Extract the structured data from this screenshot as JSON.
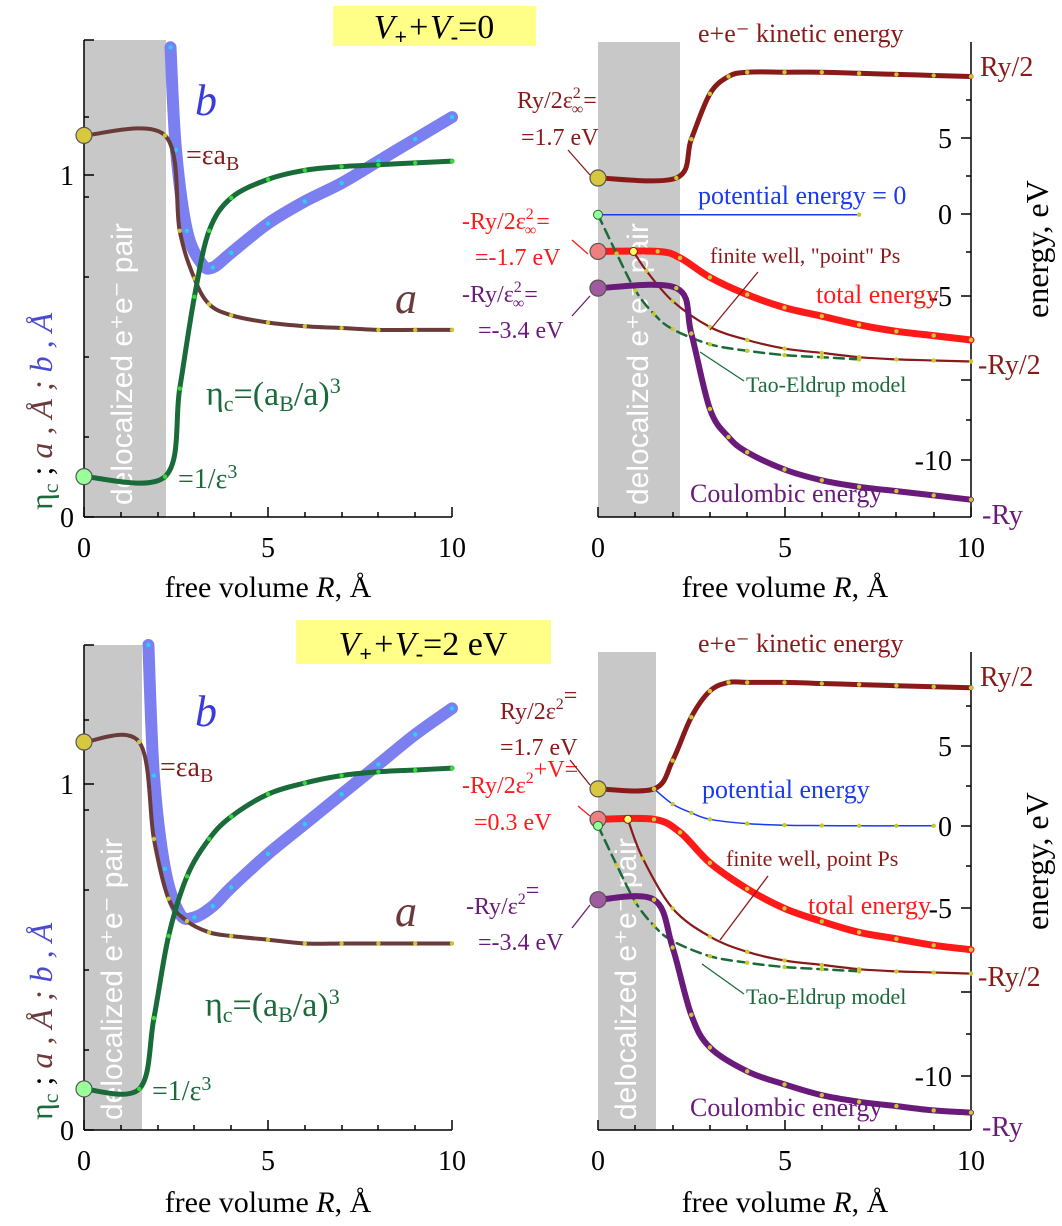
{
  "panels": [
    {
      "id": "top",
      "condition": {
        "v_text": "V",
        "plus": "+",
        "plus_v": "+V",
        "minus": "-",
        "rest": "=0"
      },
      "left": {
        "band_label": "delocalized e⁺e⁻ pair",
        "b_label": "b",
        "a_label": "a",
        "eps_label": "=εa",
        "eps_sub": "B",
        "eta_label_main": "η",
        "eta_label_sub": "c",
        "eta_formula_pre": "=(a",
        "eta_formula_sub": "B",
        "eta_formula_post": "/a)",
        "eta_formula_pow": "3",
        "inv_eps_label": "=1/ε",
        "inv_eps_pow": "3",
        "ylabel_eta": "η",
        "ylabel_eta_sub": "c",
        "ylabel_a": "a , Å ;",
        "ylabel_b": "b , Å",
        "xlabel_pre": "free volume ",
        "xlabel_var": "R",
        "xlabel_post": ", Å"
      },
      "right": {
        "band_label": "delocalized e⁺e⁻ pair",
        "kinetic_label": "e+e⁻ kinetic energy",
        "potential_label": "potential energy = 0",
        "finite_well_label": "finite well, \"point\" Ps",
        "total_label": "total energy",
        "tao_label": "Tao-Eldrup model",
        "coulomb_label": "Coulombic energy",
        "ry2_top": "Ry/2",
        "ry2_bottom": "-Ry/2",
        "ry_bottom": "-Ry",
        "note1_a": "Ry/2ε",
        "note1_sup": "2",
        "note1_sub": "∞",
        "note1_eq": "=",
        "note1_b": "=1.7 eV",
        "note2_a": "-Ry/2ε",
        "note2_sup": "2",
        "note2_sub": "∞",
        "note2_eq": "=",
        "note2_b": "=-1.7 eV",
        "note3_a": "-Ry/ε",
        "note3_sup": "2",
        "note3_sub": "∞",
        "note3_eq": "=",
        "note3_b": "=-3.4 eV",
        "ylabel": "energy, eV",
        "xlabel_pre": "free volume ",
        "xlabel_var": "R",
        "xlabel_post": ", Å"
      }
    },
    {
      "id": "bottom",
      "condition": {
        "v_text": "V",
        "plus": "+",
        "plus_v": "+V",
        "minus": "-",
        "rest": "=2 eV"
      },
      "left": {
        "band_label": "delocalized e⁺e⁻ pair",
        "b_label": "b",
        "a_label": "a",
        "eps_label": "=εa",
        "eps_sub": "B",
        "eta_label_main": "η",
        "eta_label_sub": "c",
        "eta_formula_pre": "=(a",
        "eta_formula_sub": "B",
        "eta_formula_post": "/a)",
        "eta_formula_pow": "3",
        "inv_eps_label": "=1/ε",
        "inv_eps_pow": "3",
        "ylabel_eta": "η",
        "ylabel_eta_sub": "c",
        "ylabel_a": "a , Å ;",
        "ylabel_b": "b , Å",
        "xlabel_pre": "free volume ",
        "xlabel_var": "R",
        "xlabel_post": ", Å"
      },
      "right": {
        "band_label": "delocalized e⁺e⁻ pair",
        "kinetic_label": "e+e⁻ kinetic energy",
        "potential_label": "potential energy",
        "finite_well_label": "finite well, point Ps",
        "total_label": "total energy",
        "tao_label": "Tao-Eldrup model",
        "coulomb_label": "Coulombic energy",
        "ry2_top": "Ry/2",
        "ry2_bottom": "-Ry/2",
        "ry_bottom": "-Ry",
        "note1_a": "Ry/2ε",
        "note1_sup": "2",
        "note1_sub": "",
        "note1_eq": "=",
        "note1_b": "=1.7 eV",
        "note2_a": "-Ry/2ε",
        "note2_sup": "2",
        "note2_sub": "",
        "note2_eq": "+V=",
        "note2_b": "=0.3 eV",
        "note3_a": "-Ry/ε",
        "note3_sup": "2",
        "note3_sub": "",
        "note3_eq": "=",
        "note3_b": "=-3.4 eV",
        "ylabel": "energy, eV",
        "xlabel_pre": "free volume ",
        "xlabel_var": "R",
        "xlabel_post": ", Å"
      }
    }
  ],
  "colors": {
    "band": "#c8c8c8",
    "b_curve": "#7b7ff0",
    "b_dots": "#22d4f0",
    "a_curve": "#6b3a3a",
    "eps_curve": "#8a1a1a",
    "eta_curve": "#1a6b3a",
    "eta_dots": "#33dd33",
    "ydots": "#c8c832",
    "kinetic": "#8a1a1a",
    "potential": "#1a3af0",
    "total": "#ff1a1a",
    "finite_well": "#8a1a1a",
    "tao": "#1a6b3a",
    "coulomb": "#6a1a7a",
    "highlight": "#ffff88",
    "marker_yellow": "#d8c840",
    "marker_green": "#99ff99",
    "marker_pink": "#f08080",
    "marker_purple": "#a05aa0"
  },
  "chart_data": [
    {
      "type": "line",
      "panel": "top-left",
      "xlabel": "free volume R, Å",
      "ylabel": "ηc ; a , Å ; b , Å",
      "xlim": [
        0,
        10
      ],
      "ylim": [
        0,
        1.3
      ],
      "xticks": [
        "0",
        "5",
        "10"
      ],
      "yticks": [
        "0",
        "1"
      ],
      "series": [
        {
          "name": "b",
          "x": [
            2.35,
            2.5,
            2.8,
            3.2,
            3.5,
            4,
            5,
            6,
            7,
            8,
            9,
            10
          ],
          "y": [
            1.28,
            1.0,
            0.78,
            0.69,
            0.68,
            0.72,
            0.8,
            0.86,
            0.91,
            0.97,
            1.03,
            1.09
          ]
        },
        {
          "name": "εaB",
          "x": [
            0,
            2.2,
            2.6,
            3.0,
            3.4,
            4,
            5,
            6,
            7,
            8,
            9,
            10
          ],
          "y": [
            1.04,
            1.04,
            0.78,
            0.65,
            0.58,
            0.55,
            0.53,
            0.52,
            0.515,
            0.51,
            0.51,
            0.51
          ]
        },
        {
          "name": "ηc=(aB/a)^3",
          "x": [
            0,
            2.2,
            2.6,
            3.0,
            3.4,
            4,
            5,
            6,
            7,
            8,
            9,
            10
          ],
          "y": [
            0.11,
            0.11,
            0.35,
            0.6,
            0.78,
            0.87,
            0.92,
            0.945,
            0.955,
            0.96,
            0.965,
            0.97
          ]
        }
      ]
    },
    {
      "type": "line",
      "panel": "top-right",
      "xlabel": "free volume R, Å",
      "ylabel": "energy, eV",
      "xlim": [
        0,
        10
      ],
      "ylim": [
        -14,
        8
      ],
      "xticks": [
        "0",
        "5",
        "10"
      ],
      "yticks": [
        "-10",
        "-5",
        "0",
        "5"
      ],
      "series": [
        {
          "name": "e+e⁻ kinetic energy",
          "x": [
            0,
            2.1,
            2.5,
            3,
            3.5,
            4,
            5,
            6,
            7,
            8,
            9,
            10
          ],
          "y": [
            1.7,
            1.7,
            3.5,
            5.6,
            6.4,
            6.6,
            6.6,
            6.6,
            6.55,
            6.5,
            6.45,
            6.4
          ]
        },
        {
          "name": "potential energy = 0",
          "x": [
            0,
            7.0
          ],
          "y": [
            0,
            0
          ]
        },
        {
          "name": "total energy",
          "x": [
            0,
            1.6,
            2.2,
            3,
            4,
            5,
            6,
            7,
            8,
            9,
            10
          ],
          "y": [
            -1.7,
            -1.7,
            -2.0,
            -2.9,
            -3.7,
            -4.3,
            -4.7,
            -5.1,
            -5.4,
            -5.6,
            -5.8
          ]
        },
        {
          "name": "finite well, \"point\" Ps",
          "x": [
            0.95,
            1.3,
            2,
            3,
            4,
            5,
            6,
            7,
            8,
            9,
            10
          ],
          "y": [
            -1.7,
            -2.6,
            -4.0,
            -5.2,
            -5.8,
            -6.2,
            -6.4,
            -6.6,
            -6.7,
            -6.75,
            -6.8
          ]
        },
        {
          "name": "Tao-Eldrup model",
          "x": [
            0,
            0.5,
            1,
            1.5,
            2,
            3,
            4,
            5,
            6,
            7
          ],
          "y": [
            0,
            -1.8,
            -3.5,
            -4.6,
            -5.3,
            -6.0,
            -6.3,
            -6.5,
            -6.6,
            -6.7
          ]
        },
        {
          "name": "Coulombic energy",
          "x": [
            0,
            2.1,
            2.5,
            3,
            3.5,
            4,
            5,
            6,
            7,
            8,
            9,
            10
          ],
          "y": [
            -3.4,
            -3.4,
            -5.5,
            -9.0,
            -10.3,
            -11.0,
            -11.8,
            -12.3,
            -12.6,
            -12.8,
            -13.0,
            -13.2
          ]
        }
      ]
    },
    {
      "type": "line",
      "panel": "bottom-left",
      "xlabel": "free volume R, Å",
      "ylabel": "ηc ; a , Å ; b , Å",
      "xlim": [
        0,
        10
      ],
      "ylim": [
        0,
        1.3
      ],
      "xticks": [
        "0",
        "5",
        "10"
      ],
      "yticks": [
        "0",
        "1"
      ],
      "series": [
        {
          "name": "b",
          "x": [
            1.75,
            1.9,
            2.2,
            2.6,
            3.0,
            3.5,
            4,
            5,
            6,
            7,
            8,
            9,
            10
          ],
          "y": [
            1.3,
            0.95,
            0.7,
            0.58,
            0.57,
            0.6,
            0.65,
            0.74,
            0.82,
            0.9,
            0.98,
            1.06,
            1.13
          ]
        },
        {
          "name": "εaB",
          "x": [
            0,
            1.5,
            1.9,
            2.3,
            2.8,
            3.4,
            4,
            5,
            6,
            7,
            8,
            9,
            10
          ],
          "y": [
            1.04,
            1.04,
            0.78,
            0.62,
            0.56,
            0.53,
            0.52,
            0.51,
            0.5,
            0.5,
            0.5,
            0.5,
            0.5
          ]
        },
        {
          "name": "ηc=(aB/a)^3",
          "x": [
            0,
            1.5,
            1.9,
            2.3,
            2.8,
            3.4,
            4,
            5,
            6,
            7,
            8,
            9,
            10
          ],
          "y": [
            0.11,
            0.11,
            0.3,
            0.52,
            0.68,
            0.78,
            0.84,
            0.9,
            0.93,
            0.95,
            0.96,
            0.965,
            0.97
          ]
        }
      ]
    },
    {
      "type": "line",
      "panel": "bottom-right",
      "xlabel": "free volume R, Å",
      "ylabel": "energy, eV",
      "xlim": [
        0,
        10
      ],
      "ylim": [
        -14,
        8
      ],
      "xticks": [
        "0",
        "5",
        "10"
      ],
      "yticks": [
        "-10",
        "-5",
        "0",
        "5"
      ],
      "series": [
        {
          "name": "e+e⁻ kinetic energy",
          "x": [
            0,
            1.5,
            2,
            2.5,
            3,
            3.5,
            4,
            5,
            6,
            7,
            8,
            9,
            10
          ],
          "y": [
            1.7,
            1.7,
            3.0,
            5.0,
            6.2,
            6.6,
            6.6,
            6.6,
            6.55,
            6.5,
            6.45,
            6.4,
            6.35
          ]
        },
        {
          "name": "potential energy",
          "x": [
            1.5,
            2.0,
            2.5,
            3,
            4,
            5,
            6,
            7,
            8,
            9
          ],
          "y": [
            1.7,
            1.0,
            0.6,
            0.3,
            0.1,
            0.03,
            0.01,
            0,
            0,
            0
          ]
        },
        {
          "name": "total energy",
          "x": [
            0,
            1.5,
            2.2,
            3,
            4,
            5,
            6,
            7,
            8,
            9,
            10
          ],
          "y": [
            0.3,
            0.3,
            -0.3,
            -1.7,
            -2.9,
            -3.8,
            -4.4,
            -4.9,
            -5.2,
            -5.5,
            -5.7
          ]
        },
        {
          "name": "finite well, point Ps",
          "x": [
            0.8,
            1.2,
            2,
            3,
            4,
            5,
            6,
            7,
            8,
            9,
            10
          ],
          "y": [
            0.3,
            -1.5,
            -3.8,
            -5.1,
            -5.8,
            -6.2,
            -6.4,
            -6.6,
            -6.7,
            -6.75,
            -6.8
          ]
        },
        {
          "name": "Tao-Eldrup model",
          "x": [
            0,
            0.5,
            1,
            1.5,
            2,
            3,
            4,
            5,
            6,
            7
          ],
          "y": [
            0,
            -1.8,
            -3.5,
            -4.6,
            -5.3,
            -6.0,
            -6.3,
            -6.5,
            -6.6,
            -6.7
          ]
        },
        {
          "name": "Coulombic energy",
          "x": [
            0,
            1.5,
            2,
            2.5,
            3,
            4,
            5,
            6,
            7,
            8,
            9,
            10
          ],
          "y": [
            -3.4,
            -3.4,
            -5.6,
            -8.7,
            -10.2,
            -11.3,
            -11.9,
            -12.4,
            -12.7,
            -12.9,
            -13.1,
            -13.2
          ]
        }
      ]
    }
  ]
}
